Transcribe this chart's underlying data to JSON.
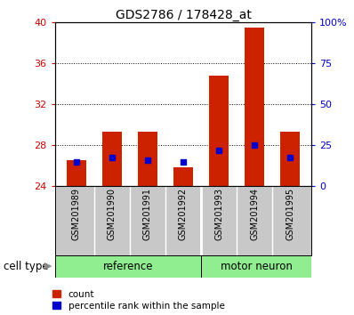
{
  "title": "GDS2786 / 178428_at",
  "samples": [
    "GSM201989",
    "GSM201990",
    "GSM201991",
    "GSM201992",
    "GSM201993",
    "GSM201994",
    "GSM201995"
  ],
  "red_values": [
    26.5,
    29.3,
    29.3,
    25.8,
    34.8,
    39.5,
    29.3
  ],
  "blue_values": [
    26.3,
    26.8,
    26.5,
    26.3,
    27.5,
    28.0,
    26.8
  ],
  "baseline": 24,
  "ylim_left": [
    24,
    40
  ],
  "ylim_right": [
    0,
    100
  ],
  "yticks_left": [
    24,
    28,
    32,
    36,
    40
  ],
  "yticks_right": [
    0,
    25,
    50,
    75,
    100
  ],
  "ytick_right_labels": [
    "0",
    "25",
    "50",
    "75",
    "100%"
  ],
  "left_tick_color": "#cc0000",
  "right_tick_color": "#0000cc",
  "group_labels": [
    "reference",
    "motor neuron"
  ],
  "group_split": 3.5,
  "bar_color": "#cc2200",
  "marker_color": "#0000cc",
  "sample_label_bg": "#c8c8c8",
  "group_bg_color": "#90ee90",
  "title_fontsize": 10,
  "tick_fontsize": 8,
  "sample_fontsize": 7,
  "group_fontsize": 8.5,
  "legend_fontsize": 7.5,
  "cell_type_label": "cell type",
  "legend_count": "count",
  "legend_percentile": "percentile rank within the sample",
  "bar_width": 0.55
}
